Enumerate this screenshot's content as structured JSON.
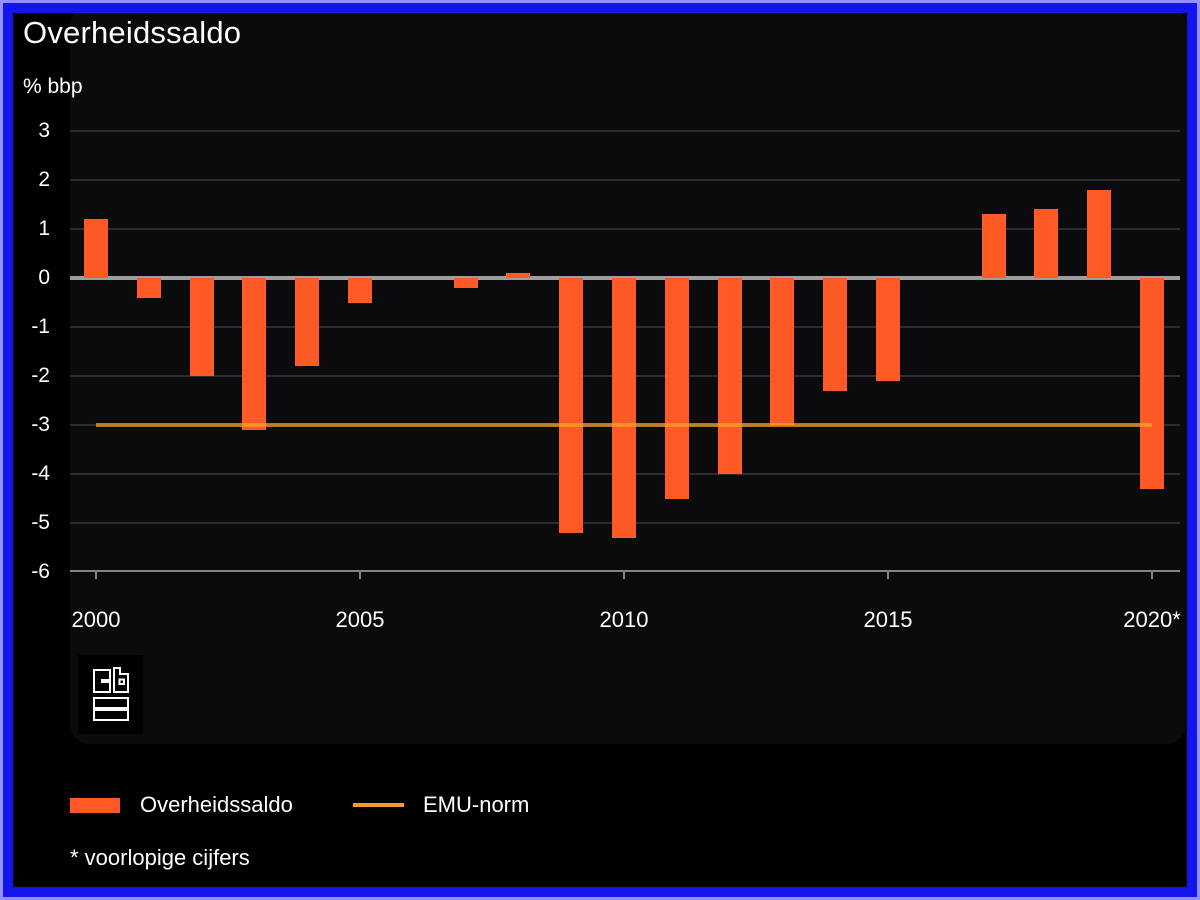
{
  "header": {
    "title": "Overheidssaldo",
    "unit_label": "% bbp"
  },
  "chart_data": {
    "type": "bar",
    "title": "Overheidssaldo",
    "ylabel": "% bbp",
    "categories": [
      2000,
      2001,
      2002,
      2003,
      2004,
      2005,
      2006,
      2007,
      2008,
      2009,
      2010,
      2011,
      2012,
      2013,
      2014,
      2015,
      2016,
      2017,
      2018,
      2019,
      2020
    ],
    "values": [
      1.2,
      -0.4,
      -2.0,
      -3.1,
      -1.8,
      -0.5,
      0.0,
      -0.2,
      0.1,
      -5.2,
      -5.3,
      -4.5,
      -4.0,
      -3.0,
      -2.3,
      -2.1,
      0.0,
      1.3,
      1.4,
      1.8,
      -4.3
    ],
    "series_name": "Overheidssaldo",
    "reference_line": {
      "name": "EMU-norm",
      "value": -3
    },
    "y_ticks": [
      3,
      2,
      1,
      0,
      -1,
      -2,
      -3,
      -4,
      -5,
      -6
    ],
    "ylim": [
      -6,
      3
    ],
    "x_ticks": [
      {
        "year": 2000,
        "label": "2000"
      },
      {
        "year": 2005,
        "label": "2005"
      },
      {
        "year": 2010,
        "label": "2010"
      },
      {
        "year": 2015,
        "label": "2015"
      },
      {
        "year": 2020,
        "label": "2020*"
      }
    ],
    "grid": true,
    "legend_position": "bottom",
    "colors": {
      "bar": "#ff5a25",
      "emu_line": "#ffa32a",
      "legend_emu_line": "#ef9b2e",
      "zero_line": "#9e9e9e",
      "gridline": "#2d2d2d",
      "axis": "#838383",
      "text": "#ffffff",
      "background": "#000000",
      "panel": "#0b0b0d",
      "frame_blue": "#1414ec",
      "frame_light_blue": "#9191ff"
    }
  },
  "legend": {
    "series_label": "Overheidssaldo",
    "norm_label": "EMU-norm"
  },
  "footnote": "* voorlopige cijfers",
  "logo": {
    "icon": "cbs-logo"
  }
}
